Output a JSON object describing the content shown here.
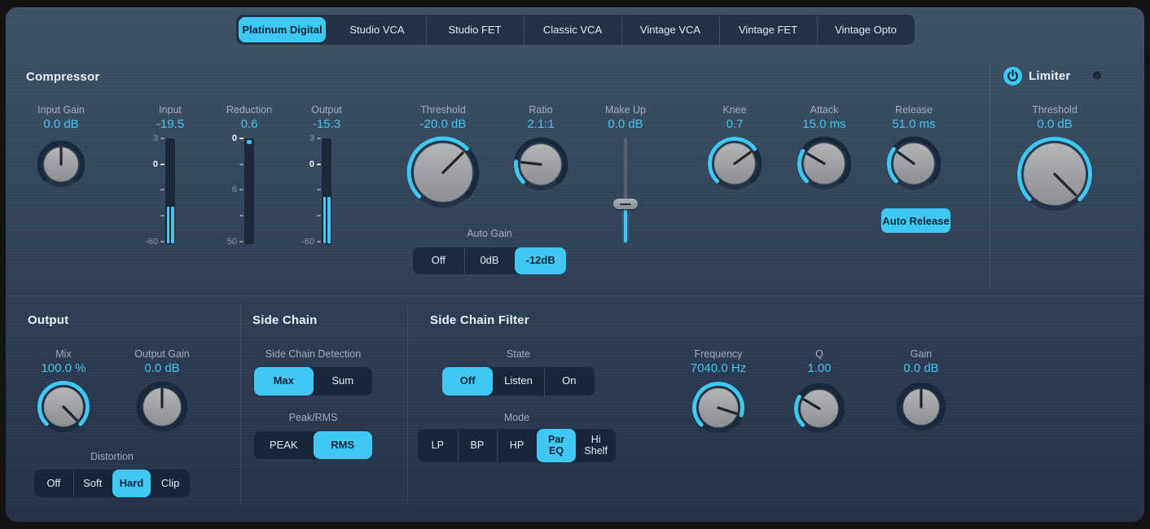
{
  "colors": {
    "accent": "#3fc8f4",
    "panel_top": "#3d5168",
    "panel_bottom": "#243349",
    "selected_text": "#0d2637",
    "value_text": "#45c4ee"
  },
  "tabs": {
    "items": [
      {
        "label": "Platinum Digital",
        "selected": true
      },
      {
        "label": "Studio VCA"
      },
      {
        "label": "Studio FET"
      },
      {
        "label": "Classic VCA"
      },
      {
        "label": "Vintage VCA"
      },
      {
        "label": "Vintage FET"
      },
      {
        "label": "Vintage Opto"
      }
    ]
  },
  "compressor": {
    "title": "Compressor",
    "input_gain": {
      "label": "Input Gain",
      "value": "0.0 dB",
      "fraction": 0.5,
      "mode": "bipolar"
    },
    "meters": {
      "input": {
        "label": "Input",
        "value": "-19.5",
        "ticks": [
          "3",
          "0",
          "",
          "",
          "-60"
        ]
      },
      "reduction": {
        "label": "Reduction",
        "value": "0.6",
        "ticks": [
          "0",
          "",
          "6",
          "",
          "50"
        ]
      },
      "output": {
        "label": "Output",
        "value": "-15.3",
        "ticks": [
          "3",
          "0",
          "",
          "",
          "-60"
        ]
      }
    },
    "threshold": {
      "label": "Threshold",
      "value": "-20.0 dB",
      "fraction": 0.667,
      "mode": "min"
    },
    "ratio": {
      "label": "Ratio",
      "value": "2.1:1",
      "fraction": 0.19,
      "mode": "min"
    },
    "make_up": {
      "label": "Make Up",
      "value": "0.0 dB"
    },
    "knee": {
      "label": "Knee",
      "value": "0.7",
      "fraction": 0.7,
      "mode": "min"
    },
    "attack": {
      "label": "Attack",
      "value": "15.0 ms",
      "fraction": 0.28,
      "mode": "min"
    },
    "release": {
      "label": "Release",
      "value": "51.0 ms",
      "fraction": 0.3,
      "mode": "min"
    },
    "auto_gain": {
      "label": "Auto Gain",
      "options": [
        "Off",
        "0dB",
        "-12dB"
      ],
      "selected": "-12dB"
    },
    "auto_release": {
      "label": "Auto Release",
      "active": true
    }
  },
  "limiter": {
    "title": "Limiter",
    "enabled": true,
    "threshold": {
      "label": "Threshold",
      "value": "0.0 dB",
      "fraction": 1.0,
      "mode": "min"
    }
  },
  "output": {
    "title": "Output",
    "mix": {
      "label": "Mix",
      "value": "100.0 %",
      "fraction": 1.0,
      "mode": "min"
    },
    "output_gain": {
      "label": "Output Gain",
      "value": "0.0 dB",
      "fraction": 0.5,
      "mode": "bipolar"
    },
    "distortion": {
      "label": "Distortion",
      "options": [
        "Off",
        "Soft",
        "Hard",
        "Clip"
      ],
      "selected": "Hard"
    }
  },
  "side_chain": {
    "title": "Side Chain",
    "detection": {
      "label": "Side Chain Detection",
      "options": [
        "Max",
        "Sum"
      ],
      "selected": "Max"
    },
    "peak_rms": {
      "label": "Peak/RMS",
      "options": [
        "PEAK",
        "RMS"
      ],
      "selected": "RMS"
    }
  },
  "side_chain_filter": {
    "title": "Side Chain Filter",
    "state": {
      "label": "State",
      "options": [
        "Off",
        "Listen",
        "On"
      ],
      "selected": "Off"
    },
    "mode": {
      "label": "Mode",
      "options": [
        "LP",
        "BP",
        "HP",
        "Par\nEQ",
        "Hi\nShelf"
      ],
      "selected": "Par EQ"
    },
    "frequency": {
      "label": "Frequency",
      "value": "7040.0 Hz",
      "fraction": 0.9,
      "mode": "min"
    },
    "q": {
      "label": "Q",
      "value": "1.00",
      "fraction": 0.28,
      "mode": "min"
    },
    "gain": {
      "label": "Gain",
      "value": "0.0 dB",
      "fraction": 0.5,
      "mode": "bipolar"
    }
  }
}
